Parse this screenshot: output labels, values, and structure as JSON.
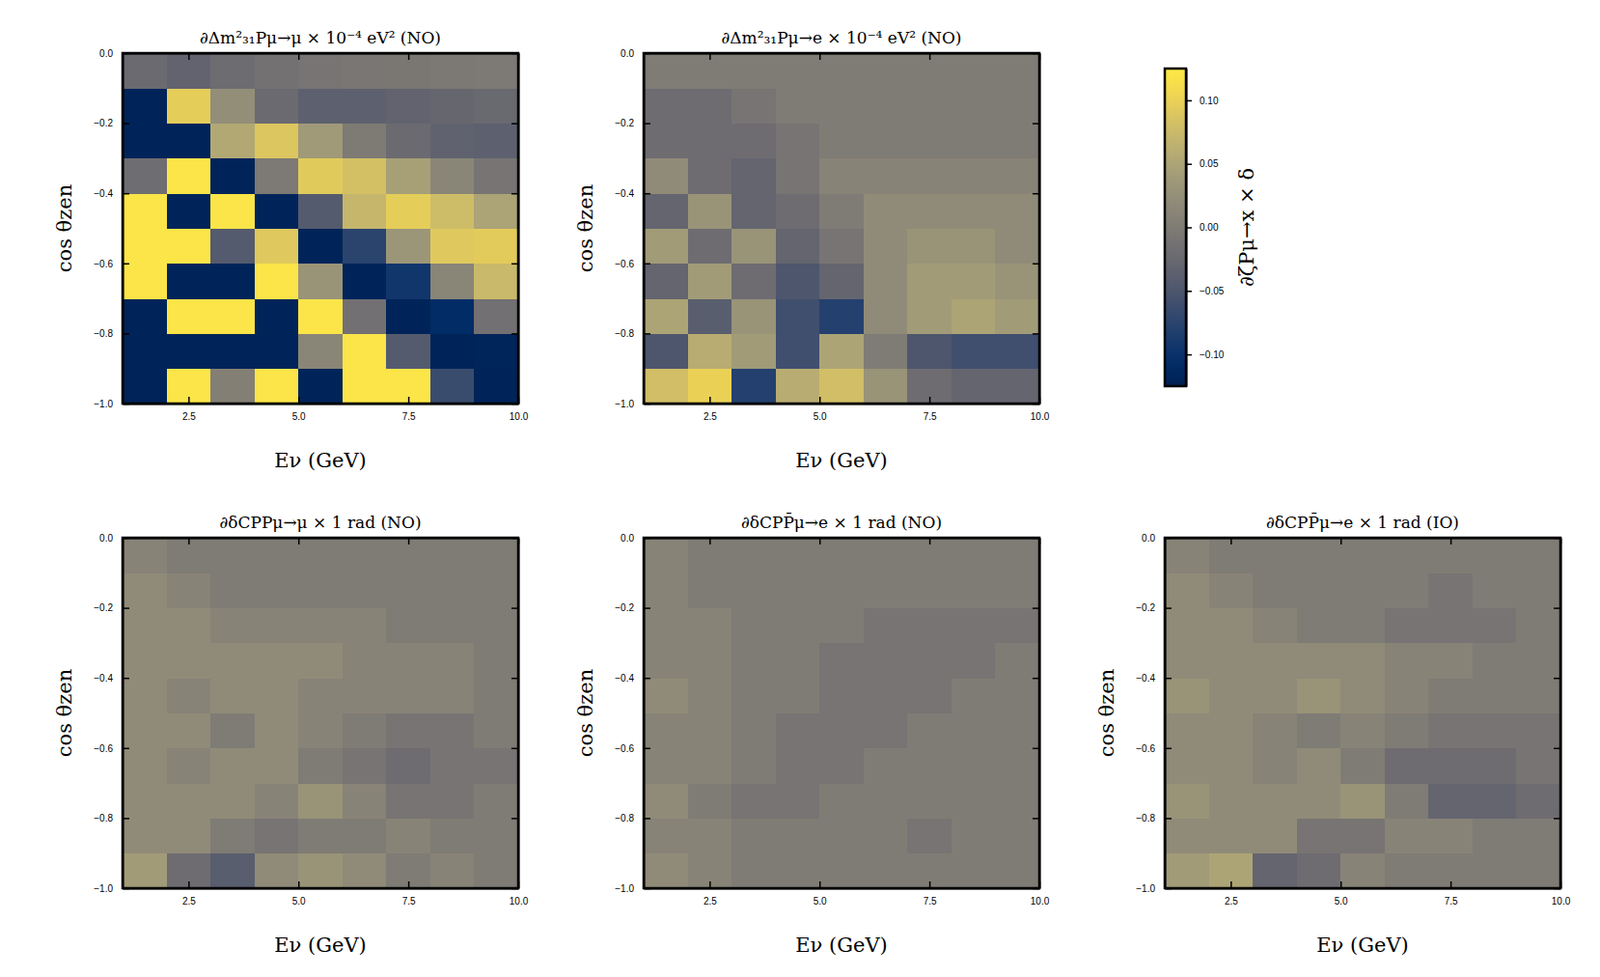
{
  "chart_data": [
    {
      "type": "heatmap",
      "title": "∂Δm²₃₁Pμ→μ × 10⁻⁴ eV² (NO)",
      "xlabel": "Eν (GeV)",
      "ylabel": "cos θzen",
      "xlim": [
        1,
        10
      ],
      "ylim": [
        -1,
        0
      ],
      "xticks": [
        2.5,
        {
          "value": 5,
          "label": "5.0"
        },
        7.5,
        {
          "value": 10,
          "label": "10.0"
        }
      ],
      "yticks": [
        {
          "value": 0,
          "label": "0.0"
        },
        {
          "value": -0.2,
          "label": "−0.2"
        },
        {
          "value": -0.4,
          "label": "−0.4"
        },
        {
          "value": -0.6,
          "label": "−0.6"
        },
        {
          "value": -0.8,
          "label": "−0.8"
        },
        {
          "value": -1,
          "label": "−1.0"
        }
      ],
      "x_edges": [
        1,
        2,
        3,
        4,
        5,
        6,
        7,
        8,
        9,
        10
      ],
      "y_edges": [
        -1,
        -0.9,
        -0.8,
        -0.7,
        -0.6,
        -0.5,
        -0.4,
        -0.3,
        -0.2,
        -0.1,
        0
      ],
      "cells": [
        [
          -0.12,
          0.12,
          0.004,
          0.12,
          -0.12,
          0.12,
          0.12,
          -0.064,
          -0.12
        ],
        [
          -0.12,
          -0.12,
          -0.12,
          -0.12,
          0.012,
          0.12,
          -0.044,
          -0.12,
          -0.119
        ],
        [
          -0.12,
          0.12,
          0.12,
          -0.12,
          0.12,
          -0.015,
          -0.12,
          -0.108,
          -0.015
        ],
        [
          0.12,
          -0.12,
          -0.12,
          0.12,
          0.03,
          -0.12,
          -0.094,
          0.012,
          0.074
        ],
        [
          0.12,
          0.12,
          -0.043,
          0.091,
          -0.12,
          -0.075,
          0.033,
          0.091,
          0.094
        ],
        [
          0.12,
          -0.12,
          0.12,
          -0.12,
          -0.044,
          0.071,
          0.096,
          0.078,
          0.049
        ],
        [
          -0.019,
          0.12,
          -0.12,
          -0.003,
          0.093,
          0.082,
          0.045,
          0.013,
          -0.01
        ],
        [
          -0.12,
          -0.12,
          0.055,
          0.088,
          0.038,
          -0.002,
          -0.023,
          -0.033,
          -0.036
        ],
        [
          -0.12,
          0.096,
          0.023,
          -0.023,
          -0.036,
          -0.036,
          -0.032,
          -0.028,
          -0.025
        ],
        [
          -0.023,
          -0.032,
          -0.021,
          -0.014,
          -0.01,
          -0.007,
          -0.006,
          -0.004,
          -0.003
        ]
      ]
    },
    {
      "type": "heatmap",
      "title": "∂Δm²₃₁Pμ→e × 10⁻⁴ eV² (NO)",
      "xlabel": "Eν (GeV)",
      "ylabel": "cos θzen",
      "xlim": [
        1,
        10
      ],
      "ylim": [
        -1,
        0
      ],
      "xticks": [
        2.5,
        {
          "value": 5,
          "label": "5.0"
        },
        7.5,
        {
          "value": 10,
          "label": "10.0"
        }
      ],
      "yticks": [
        {
          "value": 0,
          "label": "0.0"
        },
        {
          "value": -0.2,
          "label": "−0.2"
        },
        {
          "value": -0.4,
          "label": "−0.4"
        },
        {
          "value": -0.6,
          "label": "−0.6"
        },
        {
          "value": -0.8,
          "label": "−0.8"
        },
        {
          "value": -1,
          "label": "−1.0"
        }
      ],
      "x_edges": [
        1,
        2,
        3,
        4,
        5,
        6,
        7,
        8,
        9,
        10
      ],
      "y_edges": [
        -1,
        -0.9,
        -0.8,
        -0.7,
        -0.6,
        -0.5,
        -0.4,
        -0.3,
        -0.2,
        -0.1,
        0
      ],
      "cells": [
        [
          0.08,
          0.1,
          -0.08,
          0.06,
          0.08,
          0.03,
          -0.02,
          -0.03,
          -0.03
        ],
        [
          -0.05,
          0.06,
          0.04,
          -0.06,
          0.05,
          0.0,
          -0.05,
          -0.06,
          -0.06
        ],
        [
          0.05,
          -0.04,
          0.03,
          -0.06,
          -0.08,
          0.02,
          0.04,
          0.05,
          0.04
        ],
        [
          -0.03,
          0.04,
          -0.02,
          -0.05,
          -0.03,
          0.02,
          0.04,
          0.04,
          0.03
        ],
        [
          0.04,
          -0.02,
          0.03,
          -0.03,
          -0.01,
          0.02,
          0.03,
          0.03,
          0.02
        ],
        [
          -0.03,
          0.03,
          -0.03,
          -0.02,
          0.0,
          0.02,
          0.02,
          0.02,
          0.02
        ],
        [
          0.02,
          -0.02,
          -0.03,
          -0.01,
          0.01,
          0.01,
          0.01,
          0.01,
          0.01
        ],
        [
          -0.02,
          -0.02,
          -0.02,
          -0.01,
          0.0,
          0.0,
          0.0,
          0.0,
          0.0
        ],
        [
          -0.02,
          -0.02,
          -0.01,
          0.0,
          0.0,
          0.0,
          0.0,
          0.0,
          0.0
        ],
        [
          0.0,
          0.0,
          0.0,
          0.0,
          0.0,
          0.0,
          0.0,
          0.0,
          0.0
        ]
      ]
    },
    {
      "type": "heatmap",
      "title": "∂δCPPμ→μ × 1 rad (NO)",
      "xlabel": "Eν (GeV)",
      "ylabel": "cos θzen",
      "xlim": [
        1,
        10
      ],
      "ylim": [
        -1,
        0
      ],
      "xticks": [
        2.5,
        {
          "value": 5,
          "label": "5.0"
        },
        7.5,
        {
          "value": 10,
          "label": "10.0"
        }
      ],
      "yticks": [
        {
          "value": 0,
          "label": "0.0"
        },
        {
          "value": -0.2,
          "label": "−0.2"
        },
        {
          "value": -0.4,
          "label": "−0.4"
        },
        {
          "value": -0.6,
          "label": "−0.6"
        },
        {
          "value": -0.8,
          "label": "−0.8"
        },
        {
          "value": -1,
          "label": "−1.0"
        }
      ],
      "x_edges": [
        1,
        2,
        3,
        4,
        5,
        6,
        7,
        8,
        9,
        10
      ],
      "y_edges": [
        -1,
        -0.9,
        -0.8,
        -0.7,
        -0.6,
        -0.5,
        -0.4,
        -0.3,
        -0.2,
        -0.1,
        0
      ],
      "cells": [
        [
          0.04,
          -0.02,
          -0.04,
          0.02,
          0.03,
          0.02,
          0.0,
          0.01,
          0.0
        ],
        [
          0.02,
          0.02,
          0.0,
          -0.01,
          0.0,
          0.0,
          0.01,
          0.0,
          0.0
        ],
        [
          0.02,
          0.02,
          0.02,
          0.01,
          0.03,
          0.01,
          -0.01,
          -0.01,
          0.0
        ],
        [
          0.02,
          0.01,
          0.02,
          0.02,
          0.0,
          -0.01,
          -0.02,
          -0.01,
          -0.01
        ],
        [
          0.02,
          0.02,
          0.0,
          0.02,
          0.01,
          0.0,
          -0.01,
          -0.01,
          0.0
        ],
        [
          0.02,
          0.01,
          0.02,
          0.02,
          0.01,
          0.01,
          0.01,
          0.01,
          0.0
        ],
        [
          0.02,
          0.02,
          0.02,
          0.02,
          0.02,
          0.01,
          0.01,
          0.01,
          0.0
        ],
        [
          0.02,
          0.02,
          0.01,
          0.01,
          0.01,
          0.01,
          0.0,
          0.0,
          0.0
        ],
        [
          0.02,
          0.01,
          0.0,
          0.0,
          0.0,
          0.0,
          0.0,
          0.0,
          0.0
        ],
        [
          0.01,
          0.0,
          0.0,
          0.0,
          0.0,
          0.0,
          0.0,
          0.0,
          0.0
        ]
      ]
    },
    {
      "type": "heatmap",
      "title": "∂δCPP̄μ→e × 1 rad (NO)",
      "xlabel": "Eν (GeV)",
      "ylabel": "cos θzen",
      "xlim": [
        1,
        10
      ],
      "ylim": [
        -1,
        0
      ],
      "xticks": [
        2.5,
        {
          "value": 5,
          "label": "5.0"
        },
        7.5,
        {
          "value": 10,
          "label": "10.0"
        }
      ],
      "yticks": [
        {
          "value": 0,
          "label": "0.0"
        },
        {
          "value": -0.2,
          "label": "−0.2"
        },
        {
          "value": -0.4,
          "label": "−0.4"
        },
        {
          "value": -0.6,
          "label": "−0.6"
        },
        {
          "value": -0.8,
          "label": "−0.8"
        },
        {
          "value": -1,
          "label": "−1.0"
        }
      ],
      "x_edges": [
        1,
        2,
        3,
        4,
        5,
        6,
        7,
        8,
        9,
        10
      ],
      "y_edges": [
        -1,
        -0.9,
        -0.8,
        -0.7,
        -0.6,
        -0.5,
        -0.4,
        -0.3,
        -0.2,
        -0.1,
        0
      ],
      "cells": [
        [
          0.02,
          0.01,
          0.0,
          0.0,
          0.0,
          0.0,
          0.0,
          0.0,
          0.0
        ],
        [
          0.01,
          0.01,
          0.0,
          0.0,
          0.0,
          0.0,
          -0.01,
          0.0,
          0.0
        ],
        [
          0.02,
          0.0,
          -0.01,
          -0.01,
          0.0,
          0.0,
          0.0,
          0.0,
          0.0
        ],
        [
          0.01,
          0.01,
          0.0,
          -0.01,
          -0.01,
          0.0,
          0.0,
          0.0,
          0.0
        ],
        [
          0.01,
          0.01,
          0.0,
          -0.01,
          -0.01,
          -0.01,
          0.0,
          0.0,
          0.0
        ],
        [
          0.02,
          0.01,
          0.0,
          0.0,
          -0.01,
          -0.01,
          -0.01,
          0.0,
          0.0
        ],
        [
          0.01,
          0.01,
          0.0,
          0.0,
          -0.01,
          -0.01,
          -0.01,
          -0.01,
          0.0
        ],
        [
          0.01,
          0.01,
          0.0,
          0.0,
          0.0,
          -0.01,
          -0.01,
          -0.01,
          -0.01
        ],
        [
          0.01,
          0.0,
          0.0,
          0.0,
          0.0,
          0.0,
          0.0,
          0.0,
          0.0
        ],
        [
          0.01,
          0.0,
          0.0,
          0.0,
          0.0,
          0.0,
          0.0,
          0.0,
          0.0
        ]
      ]
    },
    {
      "type": "heatmap",
      "title": "∂δCPP̄μ→e × 1 rad (IO)",
      "xlabel": "Eν (GeV)",
      "ylabel": "cos θzen",
      "xlim": [
        1,
        10
      ],
      "ylim": [
        -1,
        0
      ],
      "xticks": [
        2.5,
        {
          "value": 5,
          "label": "5.0"
        },
        7.5,
        {
          "value": 10,
          "label": "10.0"
        }
      ],
      "yticks": [
        {
          "value": 0,
          "label": "0.0"
        },
        {
          "value": -0.2,
          "label": "−0.2"
        },
        {
          "value": -0.4,
          "label": "−0.4"
        },
        {
          "value": -0.6,
          "label": "−0.6"
        },
        {
          "value": -0.8,
          "label": "−0.8"
        },
        {
          "value": -1,
          "label": "−1.0"
        }
      ],
      "x_edges": [
        1,
        2,
        3,
        4,
        5,
        6,
        7,
        8,
        9,
        10
      ],
      "y_edges": [
        -1,
        -0.9,
        -0.8,
        -0.7,
        -0.6,
        -0.5,
        -0.4,
        -0.3,
        -0.2,
        -0.1,
        0
      ],
      "cells": [
        [
          0.04,
          0.05,
          -0.03,
          -0.02,
          0.01,
          0.0,
          0.0,
          0.0,
          0.0
        ],
        [
          0.02,
          0.02,
          0.02,
          -0.01,
          -0.01,
          0.01,
          0.01,
          0.0,
          0.0
        ],
        [
          0.03,
          0.02,
          0.02,
          0.02,
          0.03,
          0.0,
          -0.03,
          -0.03,
          -0.02
        ],
        [
          0.02,
          0.02,
          0.01,
          0.02,
          0.0,
          -0.02,
          -0.02,
          -0.02,
          -0.01
        ],
        [
          0.02,
          0.02,
          0.01,
          0.0,
          0.01,
          0.0,
          -0.01,
          -0.01,
          -0.01
        ],
        [
          0.03,
          0.02,
          0.02,
          0.03,
          0.02,
          0.01,
          0.0,
          0.0,
          0.0
        ],
        [
          0.02,
          0.02,
          0.02,
          0.02,
          0.02,
          0.01,
          0.01,
          0.0,
          0.0
        ],
        [
          0.02,
          0.02,
          0.01,
          0.0,
          0.0,
          -0.01,
          -0.01,
          -0.01,
          0.0
        ],
        [
          0.02,
          0.01,
          0.0,
          0.0,
          0.0,
          0.0,
          -0.01,
          0.0,
          0.0
        ],
        [
          0.01,
          0.0,
          0.0,
          0.0,
          0.0,
          0.0,
          0.0,
          0.0,
          0.0
        ]
      ]
    },
    {
      "type": "colorbar",
      "label": "∂ζPμ→x × δ",
      "ylim": [
        -0.125,
        0.125
      ],
      "yticks": [
        {
          "value": -0.1,
          "label": "−0.10"
        },
        {
          "value": -0.05,
          "label": "−0.05"
        },
        {
          "value": 0,
          "label": "0.00"
        },
        {
          "value": 0.05,
          "label": "0.05"
        },
        {
          "value": 0.1,
          "label": "0.10"
        }
      ]
    }
  ]
}
